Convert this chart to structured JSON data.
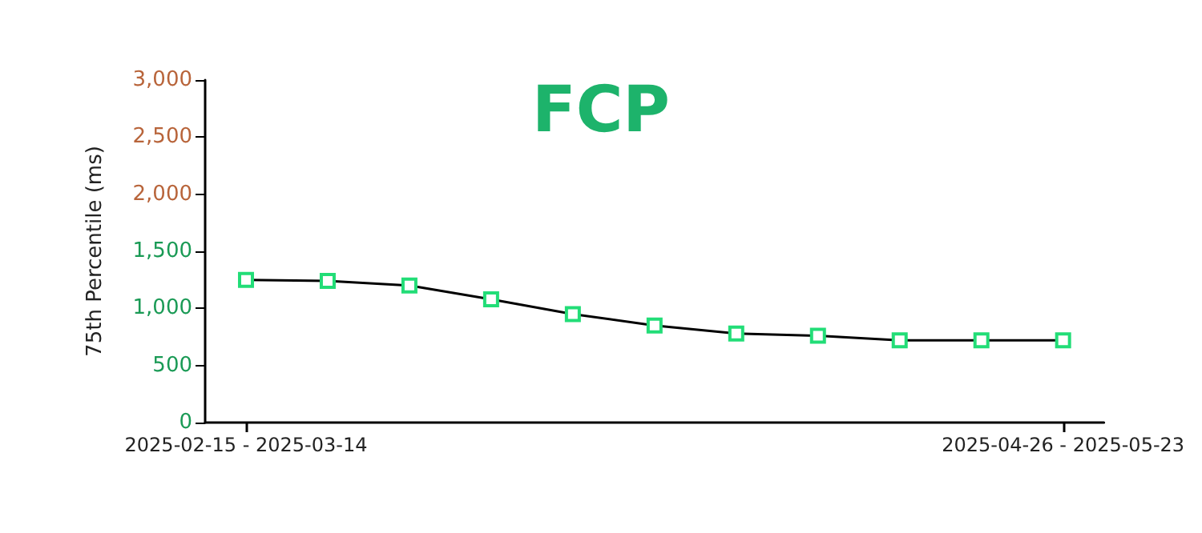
{
  "chart_data": {
    "type": "line",
    "title": "FCP",
    "ylabel": "75th Percentile (ms)",
    "categories": [
      "2025-02-15 - 2025-03-14",
      null,
      null,
      null,
      null,
      null,
      null,
      null,
      null,
      null,
      "2025-04-26 - 2025-05-23"
    ],
    "series": [
      {
        "color": "#000000",
        "values": [
          1250,
          1240,
          1200,
          1080,
          950,
          850,
          780,
          760,
          720,
          720,
          720
        ]
      }
    ],
    "ylim": [
      0,
      3000
    ],
    "yticks": [
      0,
      500,
      {
        "value": 1000,
        "label": "1,000"
      },
      {
        "value": 1500,
        "label": "1,500"
      },
      {
        "value": 2000,
        "label": "2,000"
      },
      {
        "value": 2500,
        "label": "2,500"
      },
      {
        "value": 3000,
        "label": "3,000"
      }
    ],
    "grid": false,
    "marker": "square",
    "line_style": "solid"
  }
}
